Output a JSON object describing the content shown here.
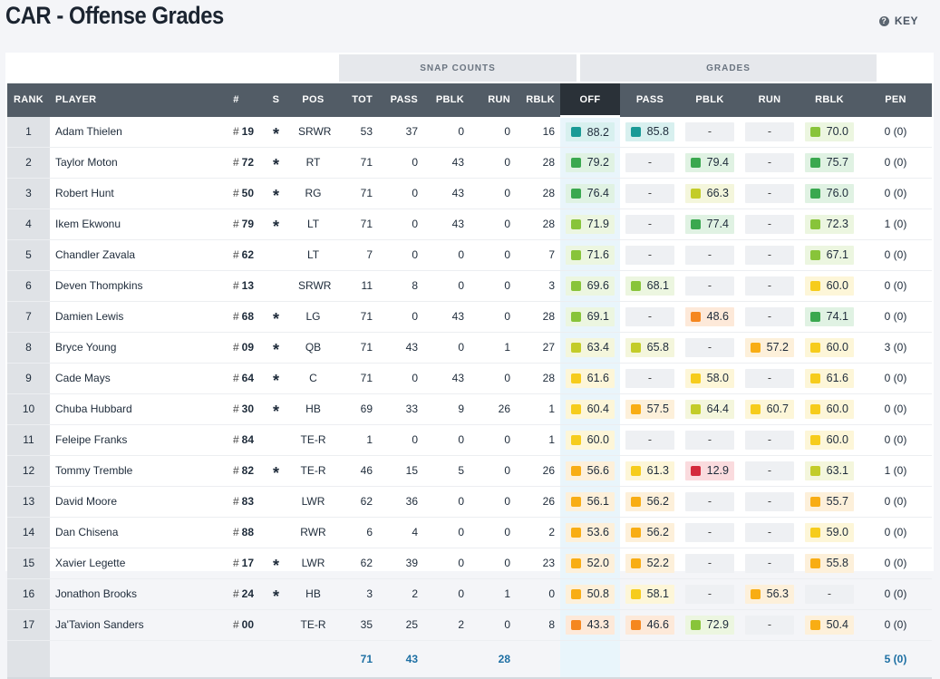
{
  "page": {
    "title": "CAR - Offense Grades",
    "key_label": "KEY"
  },
  "groups": {
    "snap_counts": "SNAP COUNTS",
    "grades": "GRADES"
  },
  "columns": [
    "RANK",
    "PLAYER",
    "#",
    "S",
    "POS",
    "TOT",
    "PASS",
    "PBLK",
    "RUN",
    "RBLK",
    "OFF",
    "PASS",
    "PBLK",
    "RUN",
    "RBLK",
    "PEN"
  ],
  "colors": {
    "teal": "#1a9a96",
    "green_dark": "#3aa84f",
    "green_light": "#88c43a",
    "yellow_green": "#c3cc29",
    "yellow": "#f6cc1c",
    "orange_yellow": "#f8ad14",
    "orange": "#f5871f",
    "red": "#d42a3c"
  },
  "players": [
    {
      "rank": "1",
      "name": "Adam Thielen",
      "jersey": "19",
      "starter": "*",
      "pos": "SRWR",
      "tot": "53",
      "pass": "37",
      "pblk": "0",
      "run": "0",
      "rblk": "16",
      "off": "88.2",
      "g_pass": "85.8",
      "g_pblk": "-",
      "g_run": "-",
      "g_rblk": "70.0",
      "pen": "0 (0)"
    },
    {
      "rank": "2",
      "name": "Taylor Moton",
      "jersey": "72",
      "starter": "*",
      "pos": "RT",
      "tot": "71",
      "pass": "0",
      "pblk": "43",
      "run": "0",
      "rblk": "28",
      "off": "79.2",
      "g_pass": "-",
      "g_pblk": "79.4",
      "g_run": "-",
      "g_rblk": "75.7",
      "pen": "0 (0)"
    },
    {
      "rank": "3",
      "name": "Robert Hunt",
      "jersey": "50",
      "starter": "*",
      "pos": "RG",
      "tot": "71",
      "pass": "0",
      "pblk": "43",
      "run": "0",
      "rblk": "28",
      "off": "76.4",
      "g_pass": "-",
      "g_pblk": "66.3",
      "g_run": "-",
      "g_rblk": "76.0",
      "pen": "0 (0)"
    },
    {
      "rank": "4",
      "name": "Ikem Ekwonu",
      "jersey": "79",
      "starter": "*",
      "pos": "LT",
      "tot": "71",
      "pass": "0",
      "pblk": "43",
      "run": "0",
      "rblk": "28",
      "off": "71.9",
      "g_pass": "-",
      "g_pblk": "77.4",
      "g_run": "-",
      "g_rblk": "72.3",
      "pen": "1 (0)"
    },
    {
      "rank": "5",
      "name": "Chandler Zavala",
      "jersey": "62",
      "starter": "",
      "pos": "LT",
      "tot": "7",
      "pass": "0",
      "pblk": "0",
      "run": "0",
      "rblk": "7",
      "off": "71.6",
      "g_pass": "-",
      "g_pblk": "-",
      "g_run": "-",
      "g_rblk": "67.1",
      "pen": "0 (0)"
    },
    {
      "rank": "6",
      "name": "Deven Thompkins",
      "jersey": "13",
      "starter": "",
      "pos": "SRWR",
      "tot": "11",
      "pass": "8",
      "pblk": "0",
      "run": "0",
      "rblk": "3",
      "off": "69.6",
      "g_pass": "68.1",
      "g_pblk": "-",
      "g_run": "-",
      "g_rblk": "60.0",
      "pen": "0 (0)"
    },
    {
      "rank": "7",
      "name": "Damien Lewis",
      "jersey": "68",
      "starter": "*",
      "pos": "LG",
      "tot": "71",
      "pass": "0",
      "pblk": "43",
      "run": "0",
      "rblk": "28",
      "off": "69.1",
      "g_pass": "-",
      "g_pblk": "48.6",
      "g_run": "-",
      "g_rblk": "74.1",
      "pen": "0 (0)"
    },
    {
      "rank": "8",
      "name": "Bryce Young",
      "jersey": "09",
      "starter": "*",
      "pos": "QB",
      "tot": "71",
      "pass": "43",
      "pblk": "0",
      "run": "1",
      "rblk": "27",
      "off": "63.4",
      "g_pass": "65.8",
      "g_pblk": "-",
      "g_run": "57.2",
      "g_rblk": "60.0",
      "pen": "3 (0)"
    },
    {
      "rank": "9",
      "name": "Cade Mays",
      "jersey": "64",
      "starter": "*",
      "pos": "C",
      "tot": "71",
      "pass": "0",
      "pblk": "43",
      "run": "0",
      "rblk": "28",
      "off": "61.6",
      "g_pass": "-",
      "g_pblk": "58.0",
      "g_run": "-",
      "g_rblk": "61.6",
      "pen": "0 (0)"
    },
    {
      "rank": "10",
      "name": "Chuba Hubbard",
      "jersey": "30",
      "starter": "*",
      "pos": "HB",
      "tot": "69",
      "pass": "33",
      "pblk": "9",
      "run": "26",
      "rblk": "1",
      "off": "60.4",
      "g_pass": "57.5",
      "g_pblk": "64.4",
      "g_run": "60.7",
      "g_rblk": "60.0",
      "pen": "0 (0)"
    },
    {
      "rank": "11",
      "name": "Feleipe Franks",
      "jersey": "84",
      "starter": "",
      "pos": "TE-R",
      "tot": "1",
      "pass": "0",
      "pblk": "0",
      "run": "0",
      "rblk": "1",
      "off": "60.0",
      "g_pass": "-",
      "g_pblk": "-",
      "g_run": "-",
      "g_rblk": "60.0",
      "pen": "0 (0)"
    },
    {
      "rank": "12",
      "name": "Tommy Tremble",
      "jersey": "82",
      "starter": "*",
      "pos": "TE-R",
      "tot": "46",
      "pass": "15",
      "pblk": "5",
      "run": "0",
      "rblk": "26",
      "off": "56.6",
      "g_pass": "61.3",
      "g_pblk": "12.9",
      "g_run": "-",
      "g_rblk": "63.1",
      "pen": "1 (0)"
    },
    {
      "rank": "13",
      "name": "David Moore",
      "jersey": "83",
      "starter": "",
      "pos": "LWR",
      "tot": "62",
      "pass": "36",
      "pblk": "0",
      "run": "0",
      "rblk": "26",
      "off": "56.1",
      "g_pass": "56.2",
      "g_pblk": "-",
      "g_run": "-",
      "g_rblk": "55.7",
      "pen": "0 (0)"
    },
    {
      "rank": "14",
      "name": "Dan Chisena",
      "jersey": "88",
      "starter": "",
      "pos": "RWR",
      "tot": "6",
      "pass": "4",
      "pblk": "0",
      "run": "0",
      "rblk": "2",
      "off": "53.6",
      "g_pass": "56.2",
      "g_pblk": "-",
      "g_run": "-",
      "g_rblk": "59.0",
      "pen": "0 (0)"
    },
    {
      "rank": "15",
      "name": "Xavier Legette",
      "jersey": "17",
      "starter": "*",
      "pos": "LWR",
      "tot": "62",
      "pass": "39",
      "pblk": "0",
      "run": "0",
      "rblk": "23",
      "off": "52.0",
      "g_pass": "52.2",
      "g_pblk": "-",
      "g_run": "-",
      "g_rblk": "55.8",
      "pen": "0 (0)"
    },
    {
      "rank": "16",
      "name": "Jonathon Brooks",
      "jersey": "24",
      "starter": "*",
      "pos": "HB",
      "tot": "3",
      "pass": "2",
      "pblk": "0",
      "run": "1",
      "rblk": "0",
      "off": "50.8",
      "g_pass": "58.1",
      "g_pblk": "-",
      "g_run": "56.3",
      "g_rblk": "-",
      "pen": "0 (0)"
    },
    {
      "rank": "17",
      "name": "Ja'Tavion Sanders",
      "jersey": "00",
      "starter": "",
      "pos": "TE-R",
      "tot": "35",
      "pass": "25",
      "pblk": "2",
      "run": "0",
      "rblk": "8",
      "off": "43.3",
      "g_pass": "46.6",
      "g_pblk": "72.9",
      "g_run": "-",
      "g_rblk": "50.4",
      "pen": "0 (0)"
    }
  ],
  "totals": {
    "tot": "71",
    "pass": "43",
    "run": "28",
    "pen": "5 (0)"
  }
}
